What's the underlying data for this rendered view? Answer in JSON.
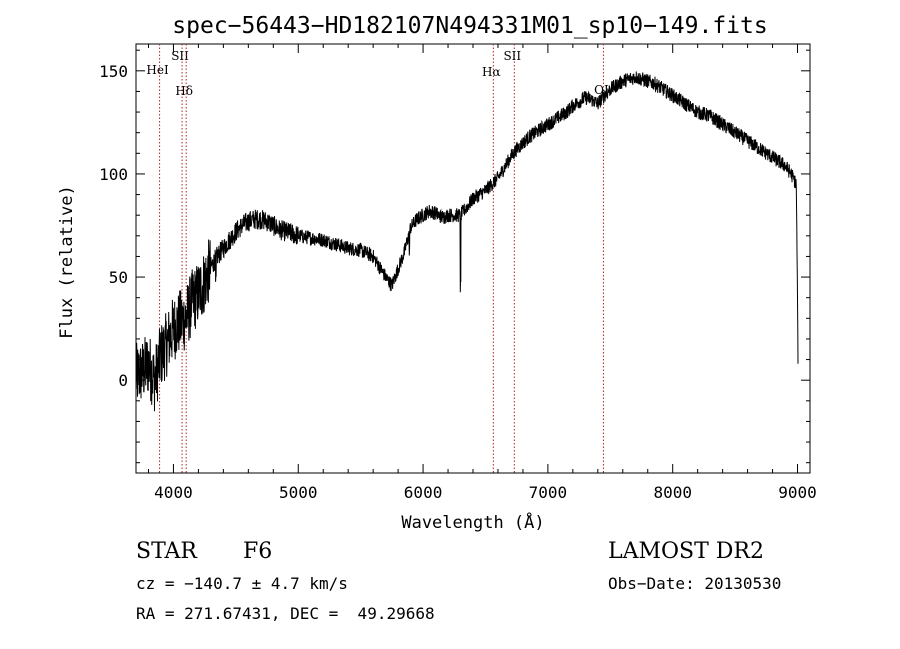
{
  "chart_data": {
    "type": "line",
    "title": "spec−56443−HD182107N494331M01_sp10−149.fits",
    "xlabel": "Wavelength (Å)",
    "ylabel": "Flux (relative)",
    "xlim": [
      3700,
      9100
    ],
    "ylim": [
      -45,
      163
    ],
    "xticks": [
      4000,
      5000,
      6000,
      7000,
      8000,
      9000
    ],
    "yticks": [
      0,
      50,
      100,
      150
    ],
    "grid": false,
    "series": [
      {
        "x": [
          3700,
          3750,
          3800,
          3850,
          3900,
          3950,
          4000,
          4050,
          4100,
          4150,
          4200,
          4250,
          4300,
          4350,
          4400,
          4450,
          4500,
          4550,
          4600,
          4650,
          4700,
          4750,
          4800,
          4850,
          4900,
          4950,
          5000,
          5100,
          5200,
          5300,
          5400,
          5500,
          5600,
          5700,
          5750,
          5800,
          5850,
          5900,
          5950,
          6000,
          6050,
          6100,
          6150,
          6200,
          6250,
          6300,
          6350,
          6400,
          6450,
          6500,
          6550,
          6600,
          6650,
          6700,
          6750,
          6800,
          6850,
          6900,
          6950,
          7000,
          7050,
          7100,
          7150,
          7200,
          7250,
          7300,
          7350,
          7400,
          7450,
          7500,
          7550,
          7600,
          7650,
          7700,
          7750,
          7800,
          7850,
          7900,
          7950,
          8000,
          8050,
          8100,
          8150,
          8200,
          8250,
          8300,
          8350,
          8400,
          8450,
          8500,
          8550,
          8600,
          8650,
          8700,
          8750,
          8800,
          8850,
          8900,
          8950,
          8990,
          9000,
          9005
        ],
        "y": [
          2,
          4,
          8,
          0,
          12,
          18,
          25,
          28,
          30,
          38,
          42,
          48,
          55,
          60,
          64,
          68,
          72,
          75,
          77,
          78,
          78,
          77,
          75,
          73,
          72,
          71,
          70,
          69,
          68,
          66,
          64,
          63,
          60,
          50,
          46,
          54,
          62,
          74,
          78,
          80,
          82,
          81,
          79,
          80,
          80,
          80,
          84,
          88,
          90,
          92,
          95,
          98,
          103,
          108,
          112,
          115,
          118,
          120,
          122,
          124,
          126,
          128,
          130,
          133,
          135,
          137,
          136,
          134,
          138,
          141,
          143,
          145,
          146,
          147,
          146,
          145,
          144,
          142,
          140,
          138,
          136,
          134,
          132,
          130,
          129,
          128,
          126,
          124,
          122,
          120,
          118,
          116,
          114,
          112,
          110,
          108,
          106,
          104,
          100,
          95,
          40,
          0
        ]
      }
    ],
    "line_markers": [
      {
        "label": "HeI",
        "x": 3889
      },
      {
        "label": "SII",
        "x": 4069
      },
      {
        "label": "Hδ",
        "x": 4102
      },
      {
        "label": "Hα",
        "x": 6563
      },
      {
        "label": "SII",
        "x": 6731
      },
      {
        "label": "OI",
        "x": 7445
      }
    ]
  },
  "info": {
    "object_class": "STAR",
    "subclass": "F6",
    "survey": "LAMOST DR2",
    "redshift_line": "cz = −140.7 ± 4.7 km/s",
    "obs_date": "Obs−Date: 20130530",
    "coords": "RA = 271.67431, DEC =  49.29668"
  }
}
